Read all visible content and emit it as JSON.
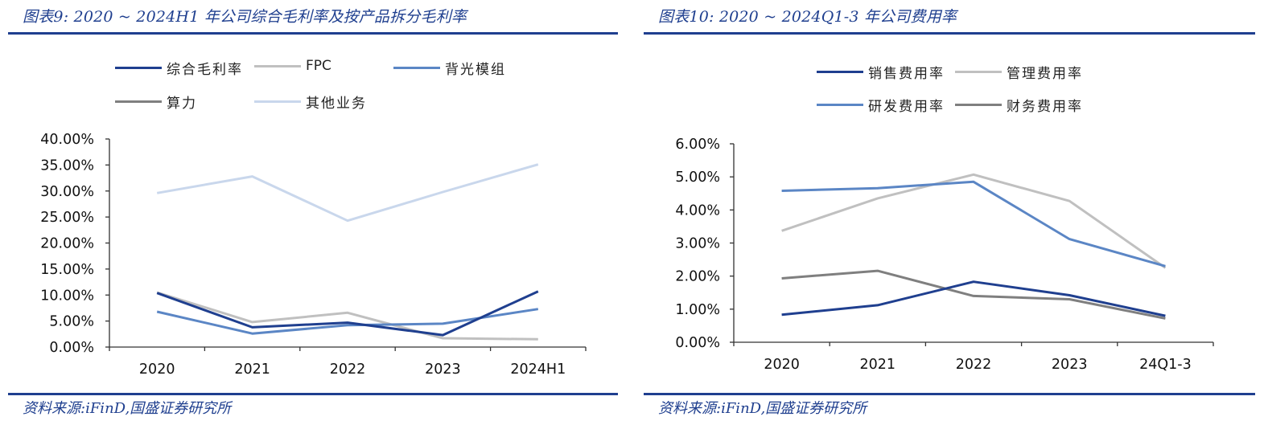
{
  "charts": [
    {
      "title": "图表9:  2020 ~ 2024H1 年公司综合毛利率及按产品拆分毛利率",
      "source": "资料来源:iFinD,国盛证券研究所"
    },
    {
      "title": "图表10:  2020 ~ 2024Q1-3 年公司费用率",
      "source": "资料来源:iFinD,国盛证券研究所"
    }
  ],
  "colors": {
    "title": "#1f3f8f",
    "dark_blue": "#1f3f8f",
    "light_gray": "#c0c0c0",
    "mid_blue": "#5b86c5",
    "dark_gray": "#7f7f7f",
    "pale_blue": "#c9d7ec"
  },
  "chart_data": [
    {
      "type": "line",
      "title": "图表9:  2020 ~ 2024H1 年公司综合毛利率及按产品拆分毛利率",
      "categories": [
        "2020",
        "2021",
        "2022",
        "2023",
        "2024H1"
      ],
      "ylim": [
        0,
        40
      ],
      "yticks": [
        "0.00%",
        "5.00%",
        "10.00%",
        "15.00%",
        "20.00%",
        "25.00%",
        "30.00%",
        "35.00%",
        "40.00%"
      ],
      "ytick_values": [
        0,
        5,
        10,
        15,
        20,
        25,
        30,
        35,
        40
      ],
      "xlabel": "",
      "ylabel": "",
      "grid": false,
      "legend_position": "top",
      "series": [
        {
          "name": "综合毛利率",
          "color": "#1f3f8f",
          "values": [
            10.4,
            3.8,
            4.7,
            2.3,
            10.7
          ]
        },
        {
          "name": "FPC",
          "color": "#c0c0c0",
          "values": [
            10.5,
            4.8,
            6.6,
            1.7,
            1.5
          ]
        },
        {
          "name": "背光模组",
          "color": "#5b86c5",
          "values": [
            6.8,
            2.6,
            4.2,
            4.5,
            7.3
          ]
        },
        {
          "name": "算力",
          "color": "#7f7f7f",
          "values": [
            null,
            null,
            null,
            null,
            null
          ]
        },
        {
          "name": "其他业务",
          "color": "#c9d7ec",
          "values": [
            29.6,
            32.8,
            24.3,
            29.8,
            35.1
          ]
        }
      ]
    },
    {
      "type": "line",
      "title": "图表10:  2020 ~ 2024Q1-3 年公司费用率",
      "categories": [
        "2020",
        "2021",
        "2022",
        "2023",
        "24Q1-3"
      ],
      "ylim": [
        0,
        6
      ],
      "yticks": [
        "0.00%",
        "1.00%",
        "2.00%",
        "3.00%",
        "4.00%",
        "5.00%",
        "6.00%"
      ],
      "ytick_values": [
        0,
        1,
        2,
        3,
        4,
        5,
        6
      ],
      "xlabel": "",
      "ylabel": "",
      "grid": false,
      "legend_position": "top",
      "series": [
        {
          "name": "销售费用率",
          "color": "#1f3f8f",
          "values": [
            0.83,
            1.12,
            1.83,
            1.42,
            0.8
          ]
        },
        {
          "name": "管理费用率",
          "color": "#c0c0c0",
          "values": [
            3.37,
            4.35,
            5.07,
            4.27,
            2.25
          ]
        },
        {
          "name": "研发费用率",
          "color": "#5b86c5",
          "values": [
            4.58,
            4.66,
            4.85,
            3.12,
            2.3
          ]
        },
        {
          "name": "财务费用率",
          "color": "#7f7f7f",
          "values": [
            1.93,
            2.16,
            1.4,
            1.3,
            0.72
          ]
        }
      ]
    }
  ]
}
